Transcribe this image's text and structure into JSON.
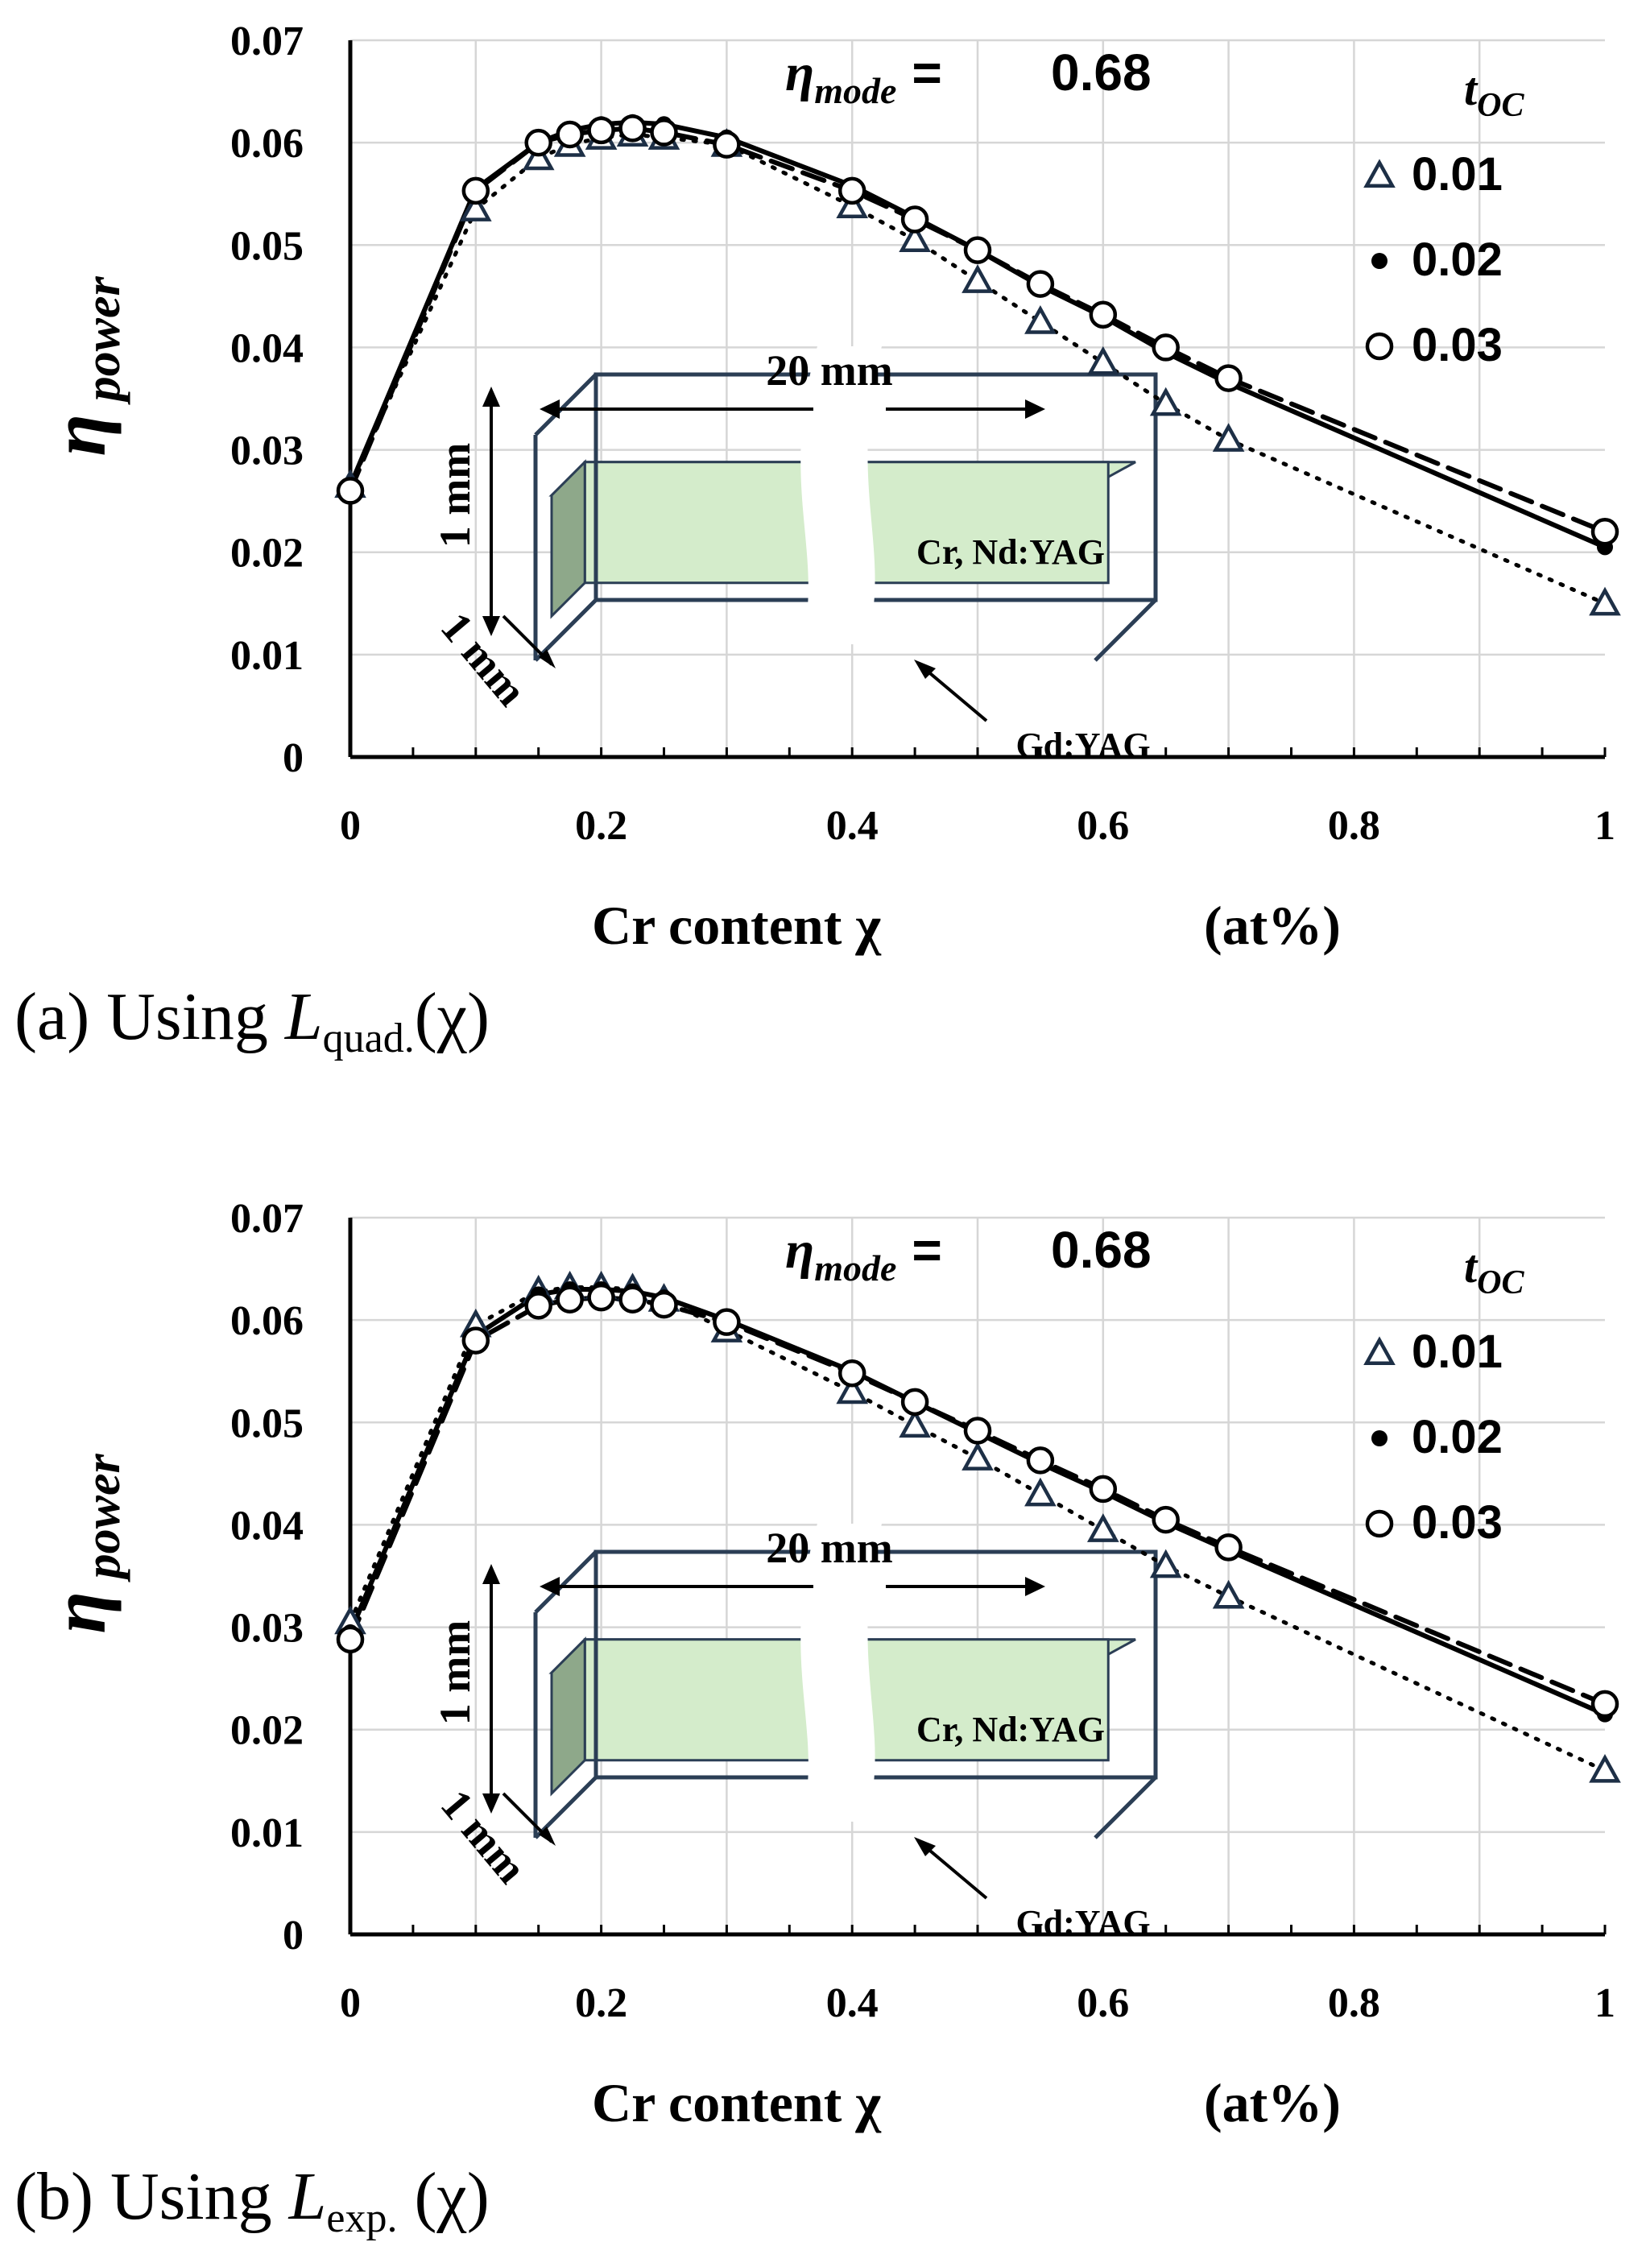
{
  "chart_data": [
    {
      "type": "line",
      "caption": "(a) Using L quad. (χ)",
      "caption_parts": {
        "prefix": "(a) Using ",
        "L": "L",
        "sub": "quad.",
        "suffix": "(χ)"
      },
      "xlabel": "Cr content χ",
      "xunit": "(at%)",
      "ylabel_symbol": "η",
      "ylabel_sub": "power",
      "xlim": [
        0,
        1
      ],
      "ylim": [
        0,
        0.07
      ],
      "xticks": [
        0,
        0.2,
        0.4,
        0.6,
        0.8,
        1
      ],
      "xtick_labels": [
        "0",
        "0.2",
        "0.4",
        "0.6",
        "0.8",
        "1"
      ],
      "yticks": [
        0,
        0.01,
        0.02,
        0.03,
        0.04,
        0.05,
        0.06,
        0.07
      ],
      "ytick_labels": [
        "0",
        "0.01",
        "0.02",
        "0.03",
        "0.04",
        "0.05",
        "0.06",
        "0.07"
      ],
      "grid": true,
      "annotation": {
        "symbol": "η",
        "sub": "mode",
        "eq": "=",
        "value": "0.68"
      },
      "legend": {
        "title": "t",
        "title_sub": "OC",
        "position": "top-right",
        "entries": [
          {
            "label": "0.01",
            "marker": "triangle",
            "line": "dotted"
          },
          {
            "label": "0.02",
            "marker": "dot",
            "line": "solid"
          },
          {
            "label": "0.03",
            "marker": "circle",
            "line": "dashed"
          }
        ]
      },
      "series": [
        {
          "name": "0.01",
          "marker": "triangle",
          "line": "dotted",
          "x": [
            0,
            0.1,
            0.15,
            0.175,
            0.2,
            0.225,
            0.25,
            0.3,
            0.4,
            0.45,
            0.5,
            0.55,
            0.6,
            0.65,
            0.7,
            1
          ],
          "y": [
            0.0265,
            0.0535,
            0.0585,
            0.0598,
            0.0605,
            0.0608,
            0.0605,
            0.0598,
            0.0538,
            0.0505,
            0.0465,
            0.0425,
            0.0385,
            0.0345,
            0.031,
            0.015
          ]
        },
        {
          "name": "0.02",
          "marker": "dot",
          "line": "solid",
          "x": [
            0,
            0.1,
            0.15,
            0.175,
            0.2,
            0.225,
            0.25,
            0.3,
            0.4,
            0.45,
            0.5,
            0.55,
            0.6,
            0.65,
            0.7,
            1
          ],
          "y": [
            0.0265,
            0.0555,
            0.06,
            0.0612,
            0.0618,
            0.062,
            0.0618,
            0.0605,
            0.0558,
            0.0527,
            0.0495,
            0.046,
            0.043,
            0.0395,
            0.0365,
            0.0205
          ]
        },
        {
          "name": "0.03",
          "marker": "circle",
          "line": "dashed",
          "x": [
            0,
            0.1,
            0.15,
            0.175,
            0.2,
            0.225,
            0.25,
            0.3,
            0.4,
            0.45,
            0.5,
            0.55,
            0.6,
            0.65,
            0.7,
            1
          ],
          "y": [
            0.026,
            0.0553,
            0.06,
            0.0608,
            0.0612,
            0.0614,
            0.061,
            0.0598,
            0.0553,
            0.0525,
            0.0495,
            0.0462,
            0.0432,
            0.04,
            0.037,
            0.022
          ]
        }
      ],
      "inset": {
        "length_label": "20 mm",
        "height_label": "1 mm",
        "depth_label": "1 mm",
        "core_label": "Cr, Nd:YAG",
        "clad_label": "Gd:YAG"
      }
    },
    {
      "type": "line",
      "caption": "(b) Using L exp. (χ)",
      "caption_parts": {
        "prefix": "(b) Using ",
        "L": "L",
        "sub": "exp.",
        "suffix": " (χ)"
      },
      "xlabel": "Cr content χ",
      "xunit": "(at%)",
      "ylabel_symbol": "η",
      "ylabel_sub": "power",
      "xlim": [
        0,
        1
      ],
      "ylim": [
        0,
        0.07
      ],
      "xticks": [
        0,
        0.2,
        0.4,
        0.6,
        0.8,
        1
      ],
      "xtick_labels": [
        "0",
        "0.2",
        "0.4",
        "0.6",
        "0.8",
        "1"
      ],
      "yticks": [
        0,
        0.01,
        0.02,
        0.03,
        0.04,
        0.05,
        0.06,
        0.07
      ],
      "ytick_labels": [
        "0",
        "0.01",
        "0.02",
        "0.03",
        "0.04",
        "0.05",
        "0.06",
        "0.07"
      ],
      "grid": true,
      "annotation": {
        "symbol": "η",
        "sub": "mode",
        "eq": "=",
        "value": "0.68"
      },
      "legend": {
        "title": "t",
        "title_sub": "OC",
        "position": "top-right",
        "entries": [
          {
            "label": "0.01",
            "marker": "triangle",
            "line": "dotted"
          },
          {
            "label": "0.02",
            "marker": "dot",
            "line": "solid"
          },
          {
            "label": "0.03",
            "marker": "circle",
            "line": "dashed"
          }
        ]
      },
      "series": [
        {
          "name": "0.01",
          "marker": "triangle",
          "line": "dotted",
          "x": [
            0,
            0.1,
            0.15,
            0.175,
            0.2,
            0.225,
            0.25,
            0.3,
            0.4,
            0.45,
            0.5,
            0.55,
            0.6,
            0.65,
            0.7,
            1
          ],
          "y": [
            0.0305,
            0.0595,
            0.0628,
            0.0632,
            0.0632,
            0.063,
            0.062,
            0.059,
            0.053,
            0.0497,
            0.0465,
            0.043,
            0.0395,
            0.036,
            0.033,
            0.016
          ]
        },
        {
          "name": "0.02",
          "marker": "dot",
          "line": "solid",
          "x": [
            0,
            0.1,
            0.15,
            0.175,
            0.2,
            0.225,
            0.25,
            0.3,
            0.4,
            0.45,
            0.5,
            0.55,
            0.6,
            0.65,
            0.7,
            1
          ],
          "y": [
            0.0295,
            0.0585,
            0.0625,
            0.063,
            0.063,
            0.0628,
            0.0622,
            0.06,
            0.055,
            0.052,
            0.049,
            0.046,
            0.0432,
            0.0402,
            0.0375,
            0.0215
          ]
        },
        {
          "name": "0.03",
          "marker": "circle",
          "line": "dashed",
          "x": [
            0,
            0.1,
            0.15,
            0.175,
            0.2,
            0.225,
            0.25,
            0.3,
            0.4,
            0.45,
            0.5,
            0.55,
            0.6,
            0.65,
            0.7,
            1
          ],
          "y": [
            0.0288,
            0.058,
            0.0614,
            0.062,
            0.0622,
            0.062,
            0.0615,
            0.0598,
            0.0548,
            0.052,
            0.0492,
            0.0463,
            0.0435,
            0.0405,
            0.0378,
            0.0225
          ]
        }
      ],
      "inset": {
        "length_label": "20 mm",
        "height_label": "1 mm",
        "depth_label": "1 mm",
        "core_label": "Cr, Nd:YAG",
        "clad_label": "Gd:YAG"
      }
    }
  ]
}
